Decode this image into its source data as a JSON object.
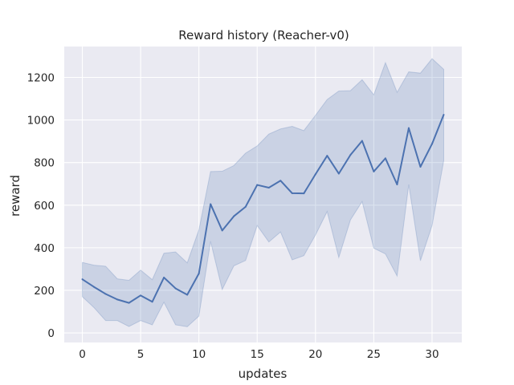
{
  "chart_data": {
    "type": "line",
    "title": "Reward history (Reacher-v0)",
    "xlabel": "updates",
    "ylabel": "reward",
    "xlim": [
      -1.55,
      32.55
    ],
    "ylim": [
      -45,
      1345
    ],
    "xticks": [
      0,
      5,
      10,
      15,
      20,
      25,
      30
    ],
    "yticks": [
      0,
      200,
      400,
      600,
      800,
      1000,
      1200
    ],
    "grid": true,
    "background": "#eaeaf2",
    "grid_color": "#ffffff",
    "line_color": "#4c72b0",
    "band_color": "#4c72b0",
    "series": [
      {
        "x": [
          0,
          1,
          2,
          3,
          4,
          5,
          6,
          7,
          8,
          9,
          10,
          11,
          12,
          13,
          14,
          15,
          16,
          17,
          18,
          19,
          20,
          21,
          22,
          23,
          24,
          25,
          26,
          27,
          28,
          29,
          30,
          31
        ],
        "y": [
          252,
          216,
          183,
          157,
          141,
          176,
          146,
          260,
          209,
          179,
          279,
          605,
          481,
          548,
          592,
          695,
          682,
          715,
          656,
          655,
          745,
          832,
          748,
          836,
          902,
          758,
          820,
          697,
          962,
          780,
          888,
          1025
        ],
        "upper": [
          331,
          318,
          313,
          254,
          247,
          295,
          250,
          374,
          380,
          329,
          484,
          758,
          759,
          786,
          844,
          878,
          934,
          958,
          970,
          950,
          1022,
          1096,
          1136,
          1138,
          1189,
          1118,
          1269,
          1130,
          1226,
          1220,
          1288,
          1238
        ],
        "lower": [
          170,
          119,
          58,
          58,
          30,
          58,
          38,
          144,
          38,
          29,
          79,
          430,
          204,
          315,
          340,
          504,
          427,
          474,
          343,
          363,
          460,
          570,
          354,
          531,
          617,
          398,
          371,
          267,
          697,
          339,
          504,
          809
        ]
      }
    ]
  }
}
